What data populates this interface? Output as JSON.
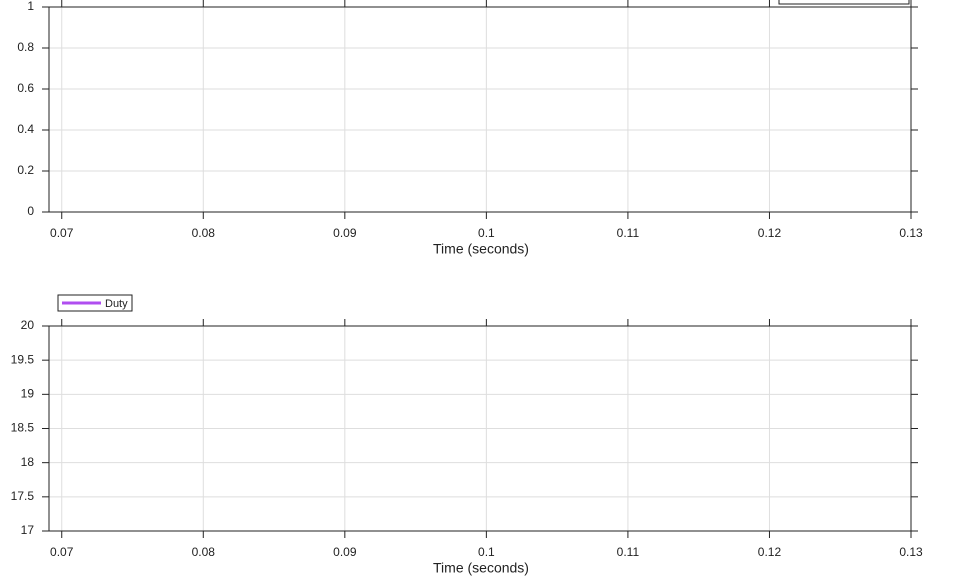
{
  "chart_data": [
    {
      "type": "line",
      "xlabel": "Time (seconds)",
      "xlim": [
        0.0691,
        0.13
      ],
      "xticks": [
        0.07,
        0.08,
        0.09,
        0.1,
        0.11,
        0.12,
        0.13
      ],
      "ylim": [
        0,
        1
      ],
      "yticks": [
        0,
        0.2,
        0.4,
        0.6,
        0.8,
        1
      ],
      "grid": true,
      "series": []
    },
    {
      "type": "line",
      "xlabel": "Time (seconds)",
      "xlim": [
        0.0691,
        0.13
      ],
      "xticks": [
        0.07,
        0.08,
        0.09,
        0.1,
        0.11,
        0.12,
        0.13
      ],
      "ylim": [
        17,
        20
      ],
      "yticks": [
        17,
        17.5,
        18,
        18.5,
        19,
        19.5,
        20
      ],
      "grid": true,
      "legend": "upper left",
      "series": [
        {
          "name": "Duty",
          "color": "#b04ef0",
          "values": []
        }
      ]
    }
  ]
}
